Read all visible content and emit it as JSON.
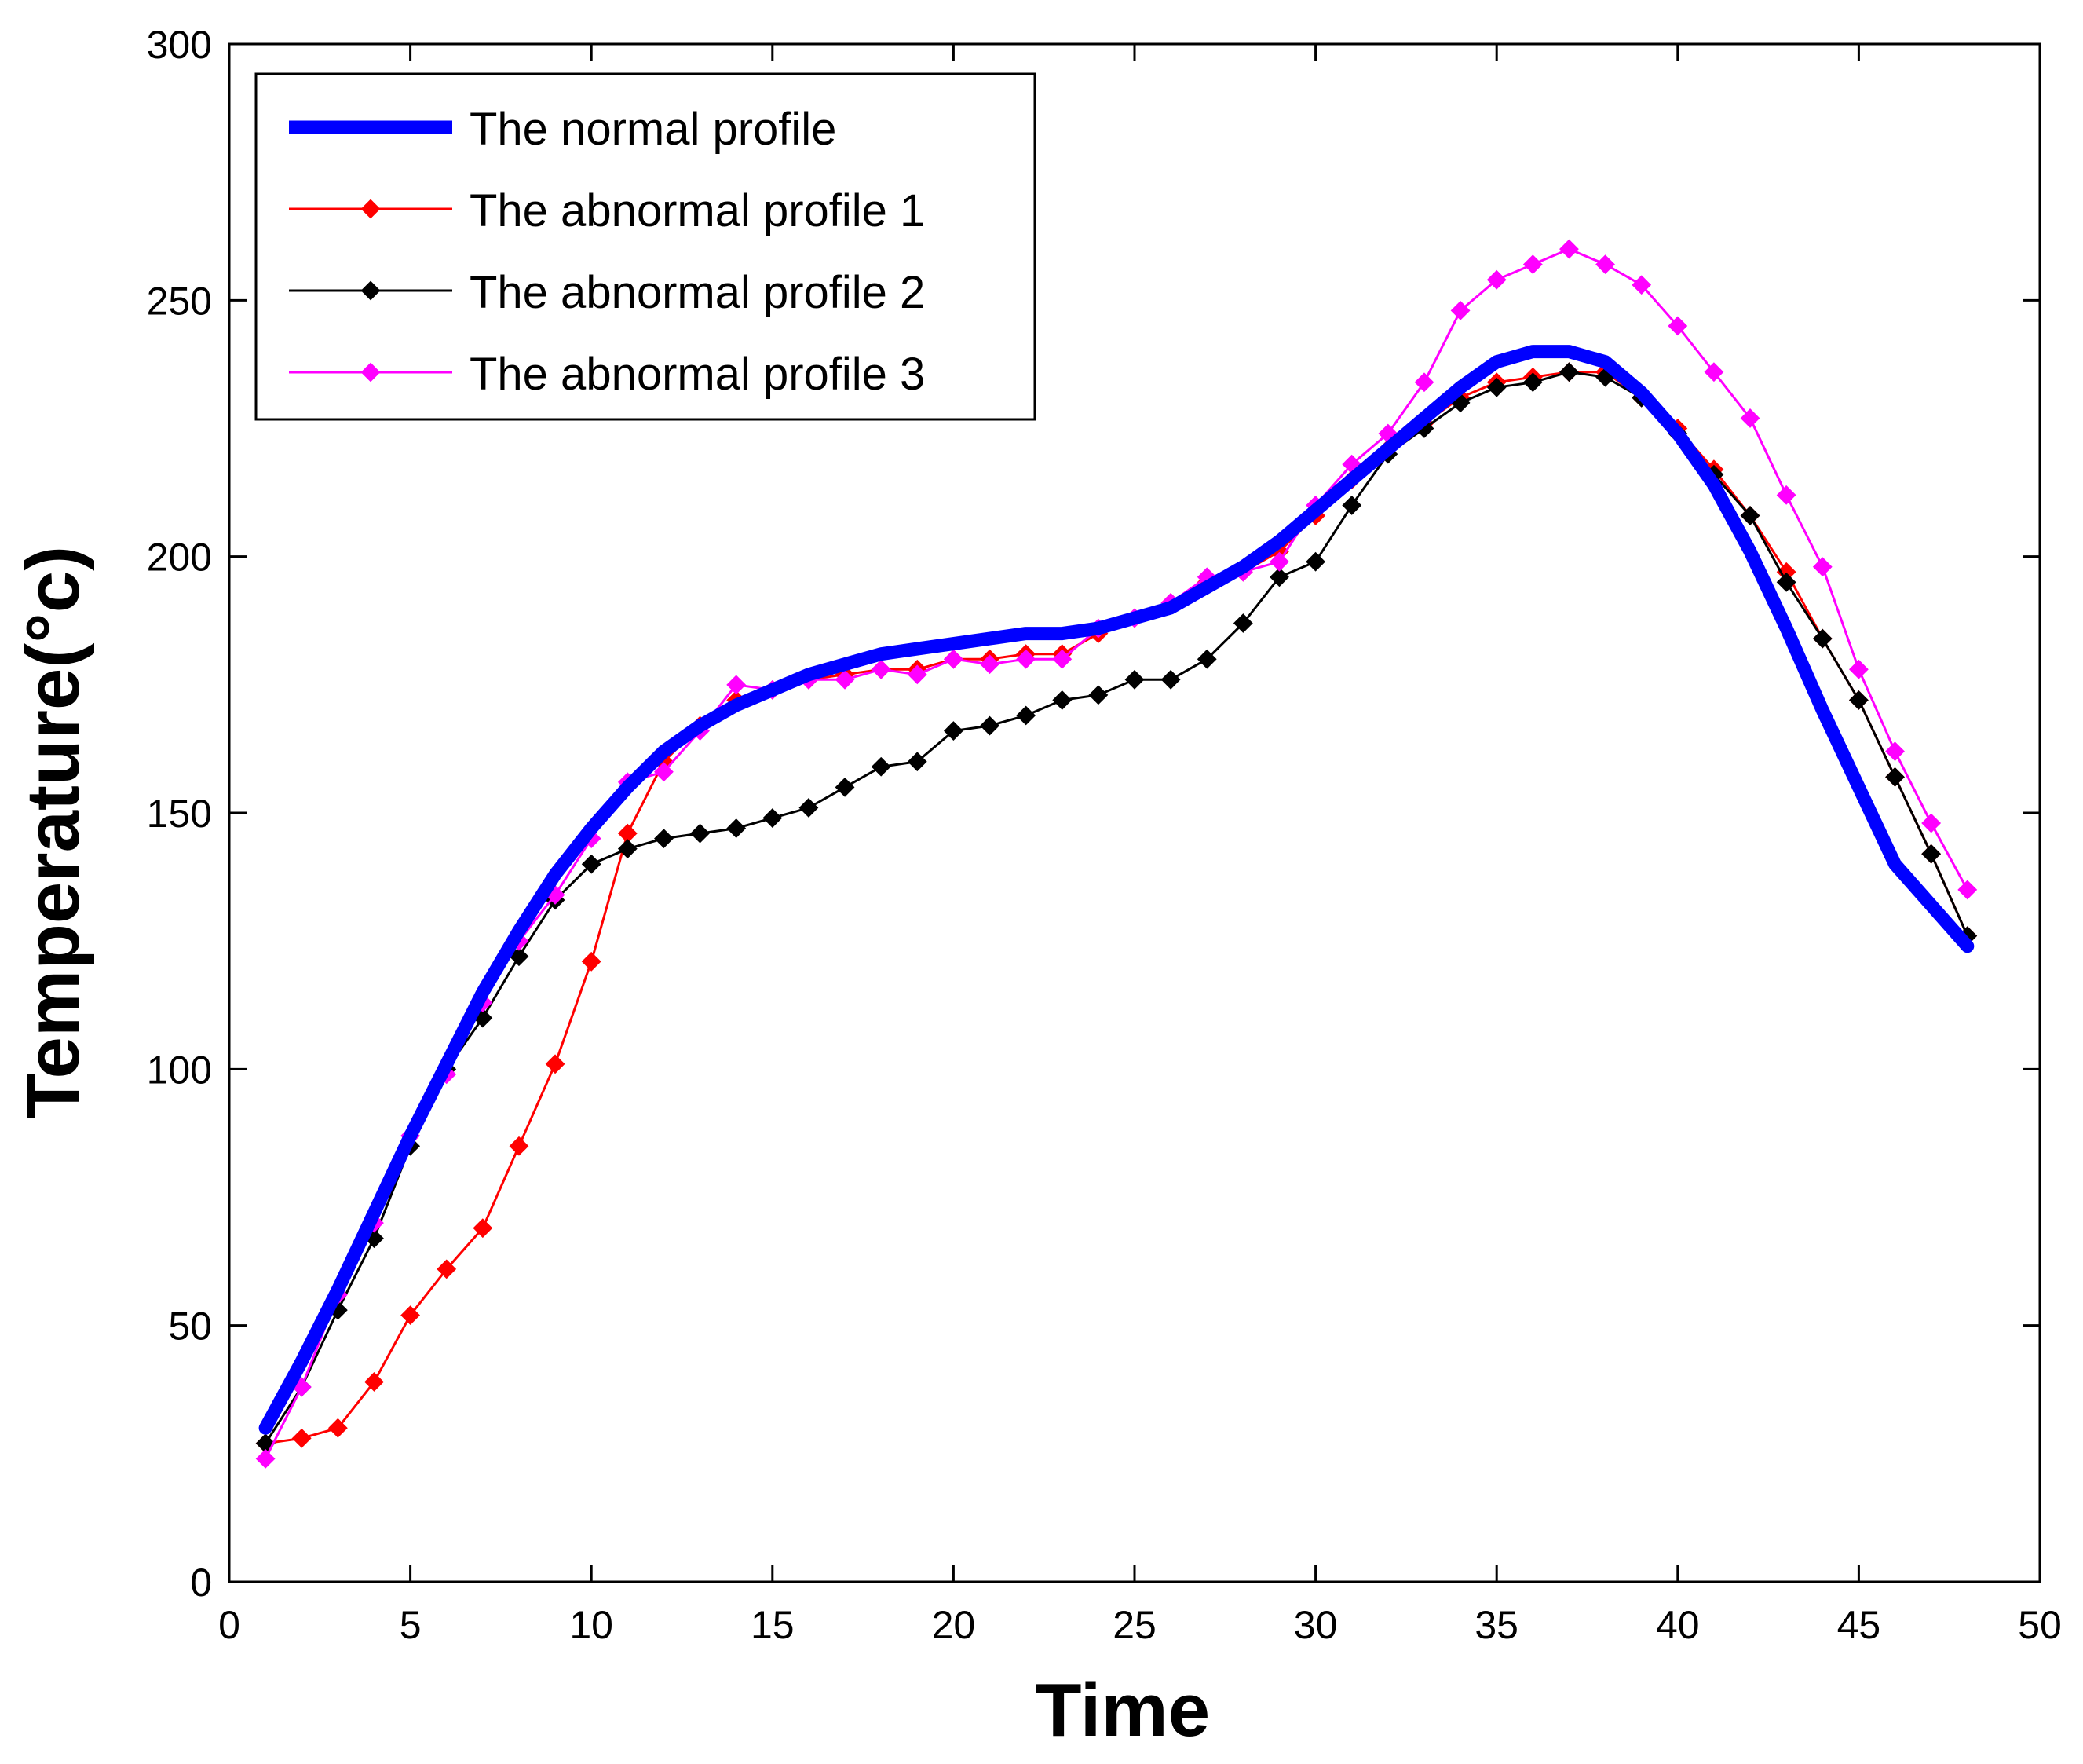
{
  "chart_data": {
    "type": "line",
    "title": "",
    "xlabel": "Time",
    "ylabel": "Temperature(°c)",
    "xlim": [
      0,
      50
    ],
    "ylim": [
      0,
      300
    ],
    "xticks": [
      0,
      5,
      10,
      15,
      20,
      25,
      30,
      35,
      40,
      45,
      50
    ],
    "yticks": [
      0,
      50,
      100,
      150,
      200,
      250,
      300
    ],
    "grid": false,
    "legend_position": "top-left",
    "x": [
      1,
      2,
      3,
      4,
      5,
      6,
      7,
      8,
      9,
      10,
      11,
      12,
      13,
      14,
      15,
      16,
      17,
      18,
      19,
      20,
      21,
      22,
      23,
      24,
      25,
      26,
      27,
      28,
      29,
      30,
      31,
      32,
      33,
      34,
      35,
      36,
      37,
      38,
      39,
      40,
      41,
      42,
      43,
      44,
      45,
      46,
      47,
      48
    ],
    "series": [
      {
        "name": "The normal profile",
        "color": "#0000ff",
        "marker": "none",
        "values": [
          30,
          43,
          57,
          72,
          87,
          101,
          115,
          127,
          138,
          147,
          155,
          162,
          167,
          171,
          174,
          177,
          179,
          181,
          182,
          183,
          184,
          185,
          185,
          186,
          188,
          190,
          194,
          198,
          203,
          209,
          215,
          221,
          227,
          233,
          238,
          240,
          240,
          238,
          232,
          224,
          214,
          201,
          186,
          170,
          155,
          140,
          132,
          124
        ]
      },
      {
        "name": "The abnormal profile 1",
        "color": "#ff0000",
        "marker": "diamond",
        "values": [
          27,
          28,
          30,
          39,
          52,
          61,
          69,
          85,
          101,
          121,
          146,
          160,
          167,
          172,
          174,
          176,
          177,
          178,
          178,
          180,
          180,
          181,
          181,
          185,
          188,
          191,
          195,
          197,
          201,
          208,
          215,
          221,
          226,
          231,
          234,
          235,
          236,
          236,
          231,
          225,
          217,
          208,
          197,
          184,
          172,
          157,
          142,
          126
        ]
      },
      {
        "name": "The abnormal profile 2",
        "color": "#000000",
        "marker": "diamond",
        "values": [
          27,
          38,
          53,
          67,
          85,
          100,
          110,
          122,
          133,
          140,
          143,
          145,
          146,
          147,
          149,
          151,
          155,
          159,
          160,
          166,
          167,
          169,
          172,
          173,
          176,
          176,
          180,
          187,
          196,
          199,
          210,
          220,
          225,
          230,
          233,
          234,
          236,
          235,
          231,
          224,
          216,
          208,
          195,
          184,
          172,
          157,
          142,
          126
        ]
      },
      {
        "name": "The abnormal profile 3",
        "color": "#ff00ff",
        "marker": "diamond",
        "values": [
          24,
          38,
          56,
          70,
          87,
          99,
          113,
          125,
          134,
          145,
          156,
          158,
          166,
          175,
          174,
          176,
          176,
          178,
          177,
          180,
          179,
          180,
          180,
          186,
          188,
          191,
          196,
          197,
          199,
          210,
          218,
          224,
          234,
          248,
          254,
          257,
          260,
          257,
          253,
          245,
          236,
          227,
          212,
          198,
          178,
          162,
          148,
          135
        ]
      }
    ]
  }
}
